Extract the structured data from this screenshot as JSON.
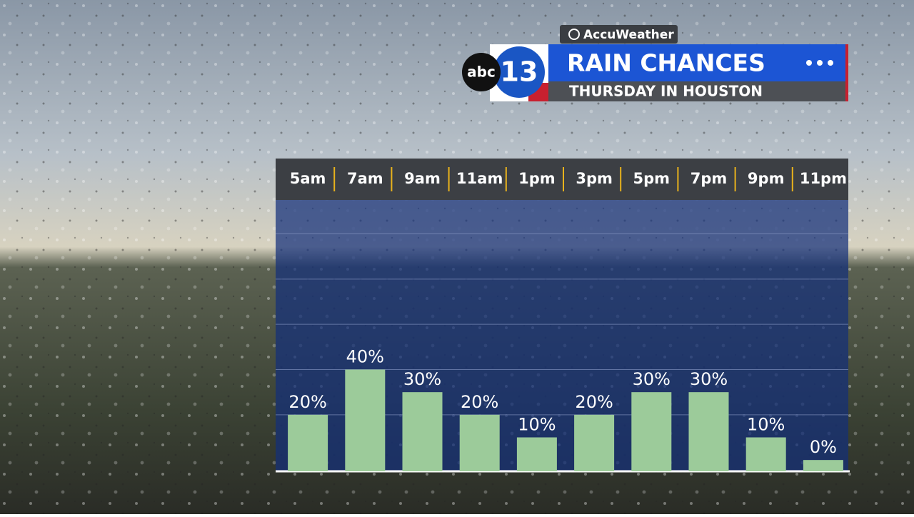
{
  "branding": {
    "provider": "AccuWeather",
    "network": "abc",
    "channel": "13"
  },
  "chart_data": {
    "type": "bar",
    "title": "RAIN CHANCES",
    "subtitle": "THURSDAY IN HOUSTON",
    "categories": [
      "5am",
      "7am",
      "9am",
      "11am",
      "1pm",
      "3pm",
      "5pm",
      "7pm",
      "9pm",
      "11pm"
    ],
    "values": [
      20,
      40,
      30,
      20,
      10,
      20,
      30,
      30,
      10,
      0
    ],
    "value_labels": [
      "20%",
      "40%",
      "30%",
      "20%",
      "10%",
      "20%",
      "30%",
      "30%",
      "10%",
      "0%"
    ],
    "color": "#9ccb9a",
    "ylim": [
      -5,
      115
    ],
    "yticks": [
      20,
      40,
      60,
      80,
      100
    ],
    "grid": true
  }
}
